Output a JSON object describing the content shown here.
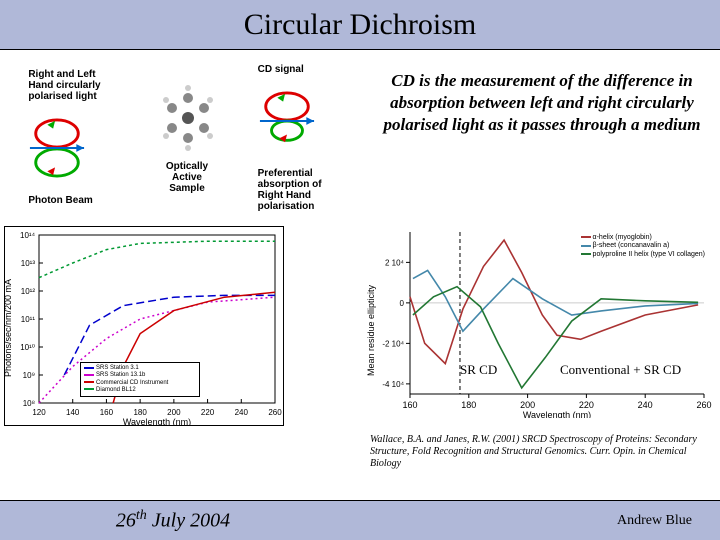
{
  "title": "Circular Dichroism",
  "diagram": {
    "label1": "Right and Left Hand circularly polarised light",
    "label2": "Photon Beam",
    "label3": "Optically Active Sample",
    "label4": "CD signal",
    "label5": "Preferential absorption of Right Hand polarisation"
  },
  "description": "CD is the measurement of the difference in absorption between left and right circularly polarised light as it passes through a medium",
  "chart_left": {
    "ylabel": "Photons/sec/nm/200 mA",
    "xlabel": "Wavelength (nm)",
    "xlim": [
      120,
      260
    ],
    "xtick_step": 20,
    "yticks": [
      "10⁸",
      "10⁹",
      "10¹⁰",
      "10¹¹",
      "10¹²",
      "10¹³",
      "10¹⁴"
    ],
    "series": [
      {
        "name": "SRS Station 3.1",
        "color": "#0000cc",
        "dash": "8,4",
        "x": [
          135,
          150,
          170,
          200,
          230,
          260
        ],
        "y": [
          1000000000.0,
          60000000000.0,
          300000000000.0,
          600000000000.0,
          700000000000.0,
          700000000000.0
        ]
      },
      {
        "name": "SRS Station 13.1b",
        "color": "#cc00cc",
        "dash": "2,3",
        "x": [
          120,
          140,
          160,
          180,
          220,
          260
        ],
        "y": [
          100000000.0,
          2000000000.0,
          20000000000.0,
          100000000000.0,
          400000000000.0,
          600000000000.0
        ]
      },
      {
        "name": "Commercial CD Instrument",
        "color": "#cc0000",
        "dash": "none",
        "x": [
          164,
          170,
          180,
          200,
          230,
          260
        ],
        "y": [
          100000000.0,
          2000000000.0,
          30000000000.0,
          200000000000.0,
          600000000000.0,
          900000000000.0
        ]
      },
      {
        "name": "Diamond BL12",
        "color": "#009933",
        "dash": "3,3",
        "x": [
          120,
          140,
          160,
          180,
          220,
          260
        ],
        "y": [
          3000000000000.0,
          10000000000000.0,
          30000000000000.0,
          50000000000000.0,
          60000000000000.0,
          60000000000000.0
        ]
      }
    ]
  },
  "chart_right": {
    "ylabel": "Mean residue ellipticity",
    "xlabel": "Wavelength (nm)",
    "xlim": [
      160,
      260
    ],
    "xtick_step": 20,
    "ylim": [
      -45000,
      35000
    ],
    "ytick_step": 20000,
    "div_x": 177,
    "annot_left": "SR CD",
    "annot_right": "Conventional + SR CD",
    "series": [
      {
        "name": "α-helix (myoglobin)",
        "color": "#aa3333",
        "x": [
          160,
          165,
          172,
          178,
          185,
          192,
          198,
          205,
          210,
          218,
          225,
          240,
          258
        ],
        "y": [
          3000,
          -20000,
          -30000,
          -3000,
          18000,
          31000,
          15000,
          -6000,
          -16000,
          -18000,
          -14000,
          -6000,
          -1000
        ]
      },
      {
        "name": "β-sheet (concanavalin a)",
        "color": "#4488aa",
        "x": [
          161,
          166,
          172,
          178,
          185,
          195,
          205,
          215,
          225,
          240,
          258
        ],
        "y": [
          12000,
          16000,
          3000,
          -14000,
          -3000,
          12000,
          2000,
          -6000,
          -4000,
          -1500,
          -300
        ]
      },
      {
        "name": "polyproline II helix (type VI collagen)",
        "color": "#227733",
        "x": [
          161,
          168,
          176,
          184,
          190,
          198,
          206,
          215,
          225,
          240,
          258
        ],
        "y": [
          -6000,
          3000,
          8000,
          -2000,
          -20000,
          -42000,
          -27000,
          -9000,
          2000,
          1000,
          300
        ]
      }
    ]
  },
  "citation": "Wallace, B.A. and Janes, R.W. (2001) SRCD Spectroscopy of Proteins: Secondary Structure, Fold Recognition and Structural Genomics. Curr. Opin. in Chemical Biology",
  "footer": {
    "date_pre": "26",
    "date_sup": "th",
    "date_post": " July 2004",
    "author": "Andrew Blue"
  },
  "colors": {
    "band": "#b0b8d8"
  }
}
